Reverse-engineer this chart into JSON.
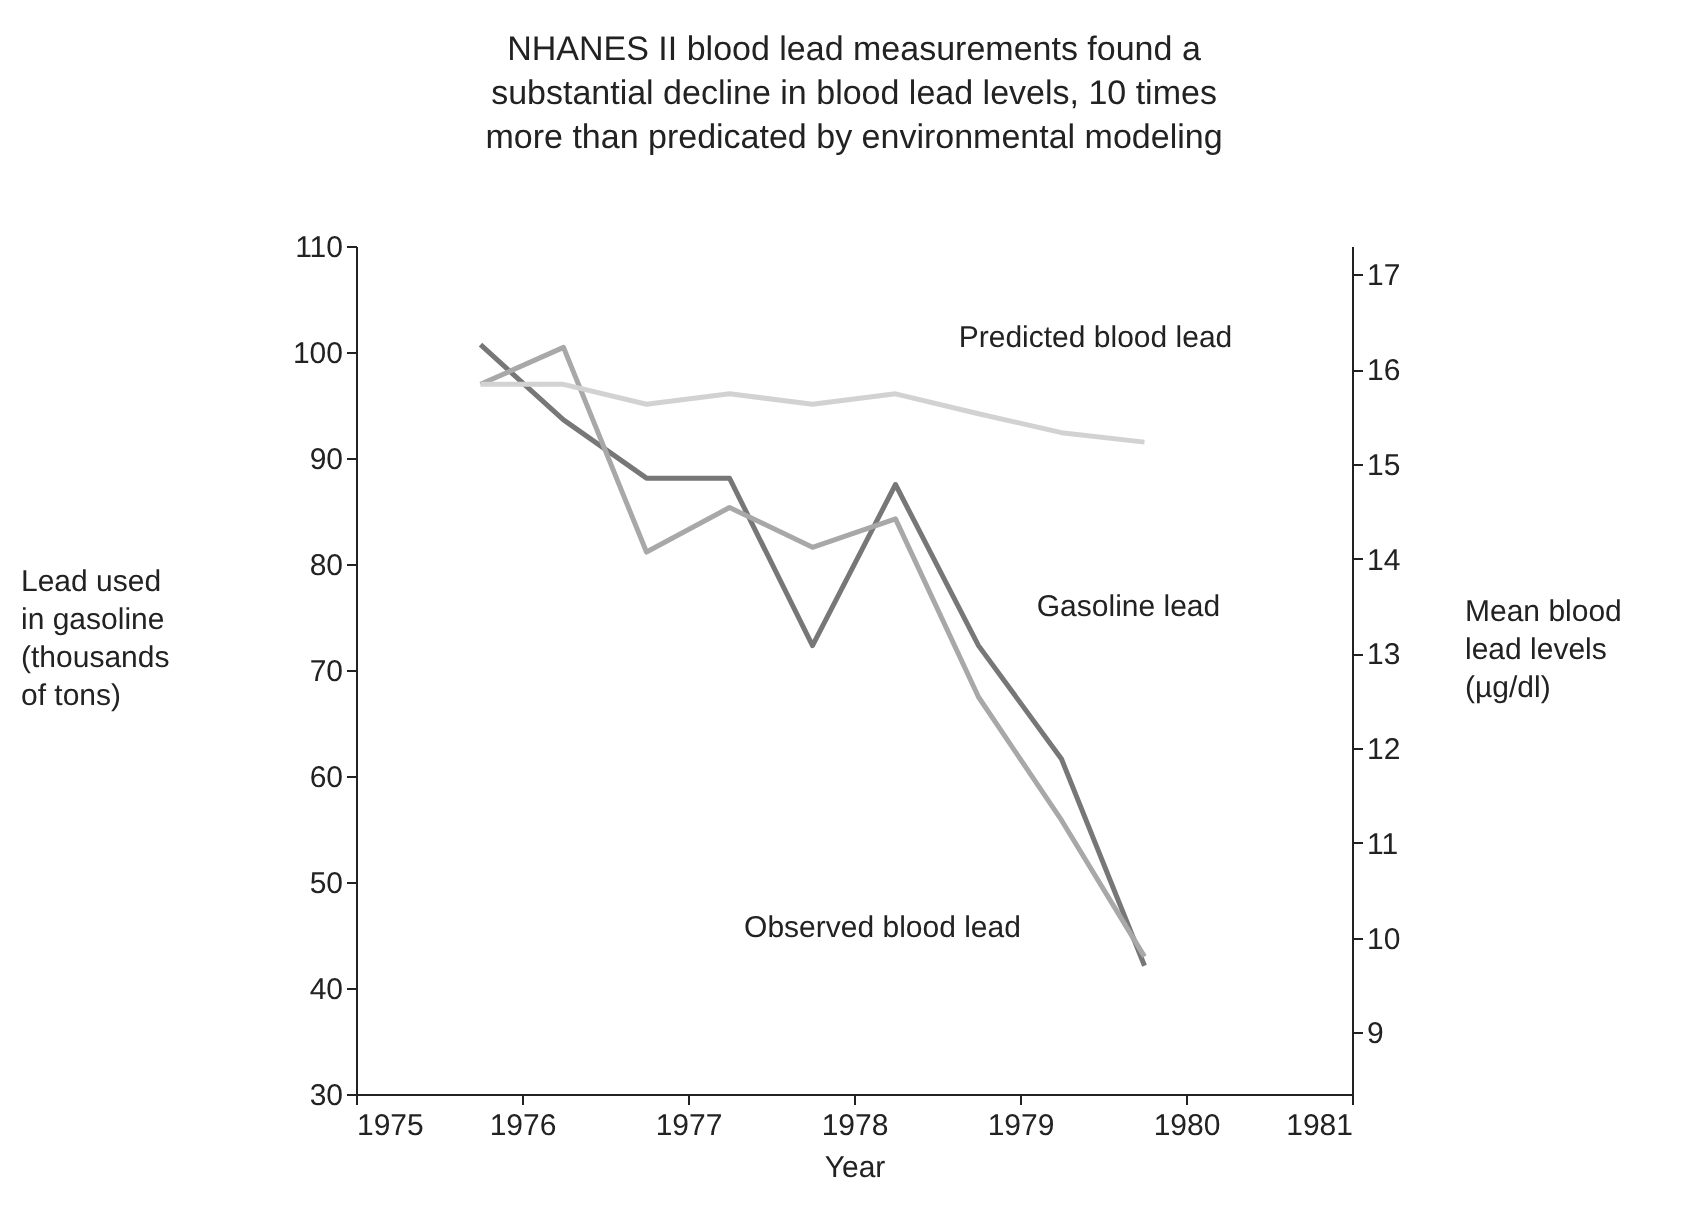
{
  "chart_data": {
    "type": "line",
    "title": "NHANES II blood lead measurements found a substantial decline in blood lead levels, 10 times more than predicated by environmental modeling",
    "xlabel": "Year",
    "ylabel": "Lead used in gasoline (thousands of tons)",
    "y2label": "Mean blood lead levels (µg/dl)",
    "x": [
      1975.75,
      1976.25,
      1976.75,
      1977.25,
      1977.75,
      1978.25,
      1978.75,
      1979.25,
      1979.75
    ],
    "series": [
      {
        "name": "Gasoline lead",
        "color": "#777777",
        "values": [
          100.7,
          93.6,
          88.1,
          88.1,
          72.3,
          87.5,
          72.3,
          61.6,
          42.1
        ]
      },
      {
        "name": "Observed blood lead",
        "color": "#a8a8a8",
        "axis": "y2",
        "values": [
          15.84,
          16.23,
          14.07,
          14.54,
          14.12,
          14.42,
          12.54,
          11.24,
          9.8
        ]
      },
      {
        "name": "Predicted blood lead",
        "color": "#d2d2d2",
        "axis": "y2",
        "values": [
          15.84,
          15.84,
          15.63,
          15.74,
          15.63,
          15.74,
          15.53,
          15.33,
          15.23
        ]
      }
    ],
    "xlim": [
      1975,
      1981
    ],
    "xticks": [
      1975,
      1976,
      1977,
      1978,
      1979,
      1980,
      1981
    ],
    "ylim": [
      30,
      110
    ],
    "yticks": [
      30,
      40,
      50,
      60,
      70,
      80,
      90,
      100,
      110
    ],
    "y2lim": [
      8.35,
      17.3
    ],
    "y2ticks": [
      9,
      10,
      11,
      12,
      13,
      14,
      15,
      16,
      17
    ],
    "grid": false,
    "legend": false,
    "marker": "none",
    "line_style": "solid"
  }
}
